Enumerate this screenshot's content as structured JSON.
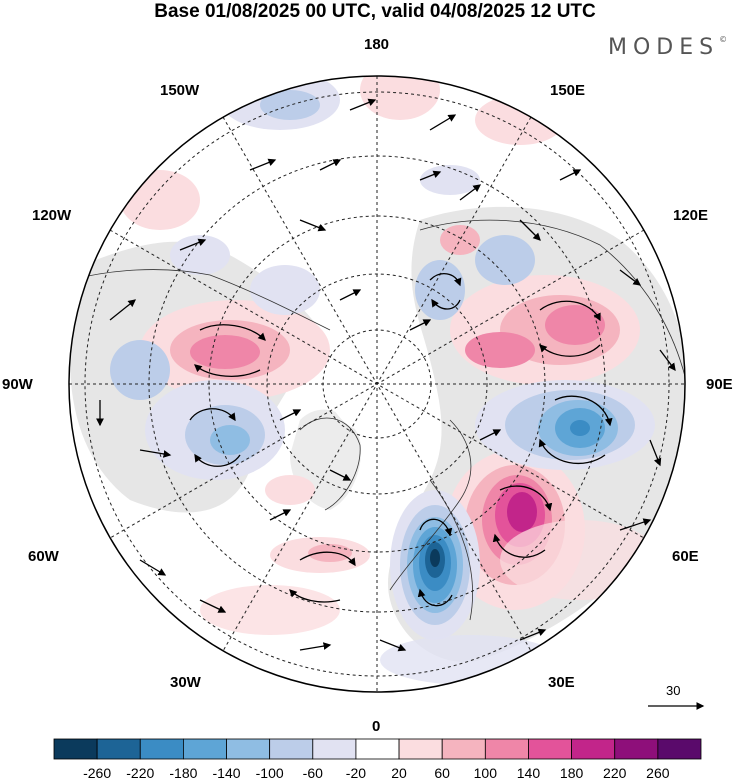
{
  "title": "Base 01/08/2025 00 UTC, valid 04/08/2025 12 UTC",
  "brand": "MODES",
  "brand_mark": "©",
  "longitude_labels": {
    "lon_180": "180",
    "lon_150w": "150W",
    "lon_150e": "150E",
    "lon_120w": "120W",
    "lon_120e": "120E",
    "lon_90w": "90W",
    "lon_90e": "90E",
    "lon_60w": "60W",
    "lon_60e": "60E",
    "lon_30w": "30W",
    "lon_30e": "30E",
    "lon_0": "0"
  },
  "reference_vector": "30",
  "colorbar": {
    "ticks": [
      "-260",
      "-220",
      "-180",
      "-140",
      "-100",
      "-60",
      "-20",
      "20",
      "60",
      "100",
      "140",
      "180",
      "220",
      "260"
    ],
    "colors": [
      "#0b3a5c",
      "#1d6496",
      "#3b8cc4",
      "#5ea5d6",
      "#8fbde3",
      "#bccde9",
      "#e1e2f2",
      "#ffffff",
      "#fbdde0",
      "#f5b4bf",
      "#ef86a8",
      "#e3539a",
      "#c2258a",
      "#8e0f7a",
      "#5a0a6b"
    ]
  },
  "legend_marker": "color-key"
}
